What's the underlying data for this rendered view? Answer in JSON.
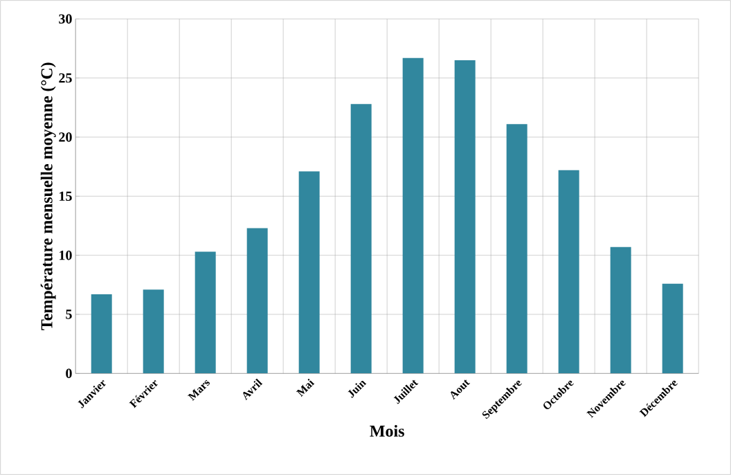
{
  "chart_data": {
    "type": "bar",
    "xlabel": "Mois",
    "ylabel": "Température  mensuelle moyenne (°C)",
    "categories": [
      "Janvier",
      "Février",
      "Mars",
      "Avril",
      "Mai",
      "Juin",
      "Juillet",
      "Aout",
      "Septembre",
      "Octobre",
      "Novembre",
      "Décembre"
    ],
    "values": [
      6.7,
      7.1,
      10.3,
      12.3,
      17.1,
      22.8,
      26.7,
      26.5,
      21.1,
      17.2,
      10.7,
      7.6
    ],
    "color": "#31879e",
    "ylim": [
      0,
      30
    ],
    "yticks": [
      0,
      5,
      10,
      15,
      20,
      25,
      30
    ],
    "grid": true
  }
}
